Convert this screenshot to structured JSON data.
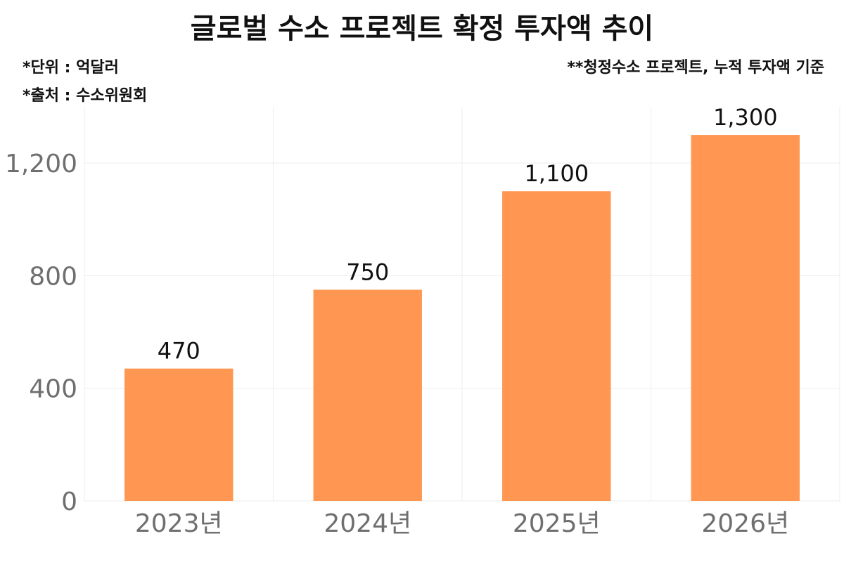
{
  "chart_data": {
    "type": "bar",
    "title": "글로벌 수소 프로젝트 확정 투자액 추이",
    "notes": {
      "unit": "*단위 : 억달러",
      "source": "*출처 : 수소위원회",
      "basis": "**청정수소 프로젝트, 누적 투자액 기준"
    },
    "categories": [
      "2023년",
      "2024년",
      "2025년",
      "2026년"
    ],
    "values": [
      470,
      750,
      1100,
      1300
    ],
    "value_labels": [
      "470",
      "750",
      "1,100",
      "1,300"
    ],
    "ylim": [
      0,
      1400
    ],
    "yticks": [
      0,
      400,
      800,
      1200
    ],
    "ytick_labels": [
      "0",
      "400",
      "800",
      "1,200"
    ],
    "xlabel": "",
    "ylabel": "",
    "grid": true,
    "legend": "none",
    "colors": {
      "bar": "#ff9752",
      "grid": "#eeeeee",
      "tick_text": "#6f6f6f",
      "text": "#111111"
    }
  }
}
